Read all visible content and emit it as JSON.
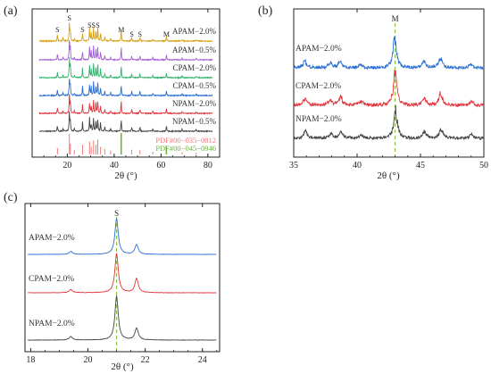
{
  "chart_data": [
    {
      "panel": "(a)",
      "type": "line",
      "xlabel": "2θ (°)",
      "x_ticks": [
        20,
        40,
        60,
        80
      ],
      "xlim": [
        5,
        85
      ],
      "series": [
        {
          "name": "APAM−2.0%",
          "color": "#d4a017"
        },
        {
          "name": "APAM−0.5%",
          "color": "#a55fd6"
        },
        {
          "name": "CPAM−2.0%",
          "color": "#2eb36b"
        },
        {
          "name": "CPAM−0.5%",
          "color": "#2a6fd1"
        },
        {
          "name": "NPAM−2.0%",
          "color": "#e0353c"
        },
        {
          "name": "NPAM−0.5%",
          "color": "#444444"
        }
      ],
      "references": [
        {
          "name": "PDF#00−035−0812",
          "color": "#f07a7a"
        },
        {
          "name": "PDF#00−045−0946",
          "color": "#6db33f"
        }
      ],
      "peak_markers": [
        {
          "label": "S",
          "x": 15.8
        },
        {
          "label": "S",
          "x": 20.9
        },
        {
          "label": "S",
          "x": 26.5
        },
        {
          "label": "S",
          "x": 29.5
        },
        {
          "label": "S",
          "x": 31.2
        },
        {
          "label": "S",
          "x": 33.0
        },
        {
          "label": "M",
          "x": 43.0
        },
        {
          "label": "S",
          "x": 47.5
        },
        {
          "label": "S",
          "x": 51.0
        },
        {
          "label": "M",
          "x": 62.3
        }
      ],
      "peaks": [
        {
          "x": 15.8,
          "h": 0.3
        },
        {
          "x": 18.2,
          "h": 0.15
        },
        {
          "x": 20.9,
          "h": 1.0
        },
        {
          "x": 21.3,
          "h": 0.55
        },
        {
          "x": 23.0,
          "h": 0.14
        },
        {
          "x": 26.5,
          "h": 0.45
        },
        {
          "x": 29.5,
          "h": 0.62
        },
        {
          "x": 30.2,
          "h": 0.38
        },
        {
          "x": 31.2,
          "h": 0.7
        },
        {
          "x": 32.2,
          "h": 0.5
        },
        {
          "x": 33.0,
          "h": 0.72
        },
        {
          "x": 34.2,
          "h": 0.4
        },
        {
          "x": 36.0,
          "h": 0.22
        },
        {
          "x": 38.5,
          "h": 0.15
        },
        {
          "x": 43.0,
          "h": 0.55
        },
        {
          "x": 47.5,
          "h": 0.22
        },
        {
          "x": 51.0,
          "h": 0.2
        },
        {
          "x": 56.5,
          "h": 0.12
        },
        {
          "x": 62.3,
          "h": 0.24
        },
        {
          "x": 69.0,
          "h": 0.1
        },
        {
          "x": 75.0,
          "h": 0.08
        }
      ],
      "reference_lines": {
        "PDF#00−035−0812": [
          {
            "x": 15.8,
            "h": 0.3
          },
          {
            "x": 20.9,
            "h": 0.95
          },
          {
            "x": 21.3,
            "h": 0.5
          },
          {
            "x": 23.0,
            "h": 0.2
          },
          {
            "x": 26.5,
            "h": 0.45
          },
          {
            "x": 29.5,
            "h": 0.6
          },
          {
            "x": 30.2,
            "h": 0.35
          },
          {
            "x": 31.2,
            "h": 0.65
          },
          {
            "x": 32.2,
            "h": 0.45
          },
          {
            "x": 33.0,
            "h": 0.7
          },
          {
            "x": 34.2,
            "h": 0.35
          },
          {
            "x": 36.0,
            "h": 0.25
          },
          {
            "x": 38.5,
            "h": 0.18
          },
          {
            "x": 47.5,
            "h": 0.22
          },
          {
            "x": 51.0,
            "h": 0.2
          },
          {
            "x": 56.5,
            "h": 0.12
          },
          {
            "x": 69.0,
            "h": 0.1
          },
          {
            "x": 75.0,
            "h": 0.08
          }
        ],
        "PDF#00−045−0946": [
          {
            "x": 43.0,
            "h": 1.0
          },
          {
            "x": 62.3,
            "h": 0.4
          }
        ]
      }
    },
    {
      "panel": "(b)",
      "type": "line",
      "xlabel": "2θ (°)",
      "x_ticks": [
        35,
        40,
        45,
        50
      ],
      "xlim": [
        35,
        50
      ],
      "series": [
        {
          "name": "APAM−2.0%",
          "color": "#2a6fd1"
        },
        {
          "name": "CPAM−2.0%",
          "color": "#e0353c"
        },
        {
          "name": "NPAM−2.0%",
          "color": "#444444"
        }
      ],
      "peak_markers": [
        {
          "label": "M",
          "x": 43.0
        }
      ],
      "dashed_line_x": 43.0,
      "peaks": [
        {
          "x": 35.9,
          "h": 0.2
        },
        {
          "x": 37.9,
          "h": 0.14
        },
        {
          "x": 38.7,
          "h": 0.2
        },
        {
          "x": 40.3,
          "h": 0.1
        },
        {
          "x": 43.0,
          "h": 0.85
        },
        {
          "x": 45.3,
          "h": 0.2
        },
        {
          "x": 46.6,
          "h": 0.3
        },
        {
          "x": 49.0,
          "h": 0.1
        }
      ]
    },
    {
      "panel": "(c)",
      "type": "line",
      "xlabel": "2θ (°)",
      "x_ticks": [
        18,
        20,
        22,
        24
      ],
      "xlim": [
        17.8,
        24.6
      ],
      "series": [
        {
          "name": "APAM−2.0%",
          "color": "#2a6fd1"
        },
        {
          "name": "CPAM−2.0%",
          "color": "#e0353c"
        },
        {
          "name": "NPAM−2.0%",
          "color": "#444444"
        }
      ],
      "peak_markers": [
        {
          "label": "S",
          "x": 21.0
        }
      ],
      "dashed_line_x": 21.0,
      "peaks": [
        {
          "x": 19.4,
          "h": 0.08
        },
        {
          "x": 21.0,
          "h": 1.0
        },
        {
          "x": 21.7,
          "h": 0.45
        }
      ]
    }
  ]
}
